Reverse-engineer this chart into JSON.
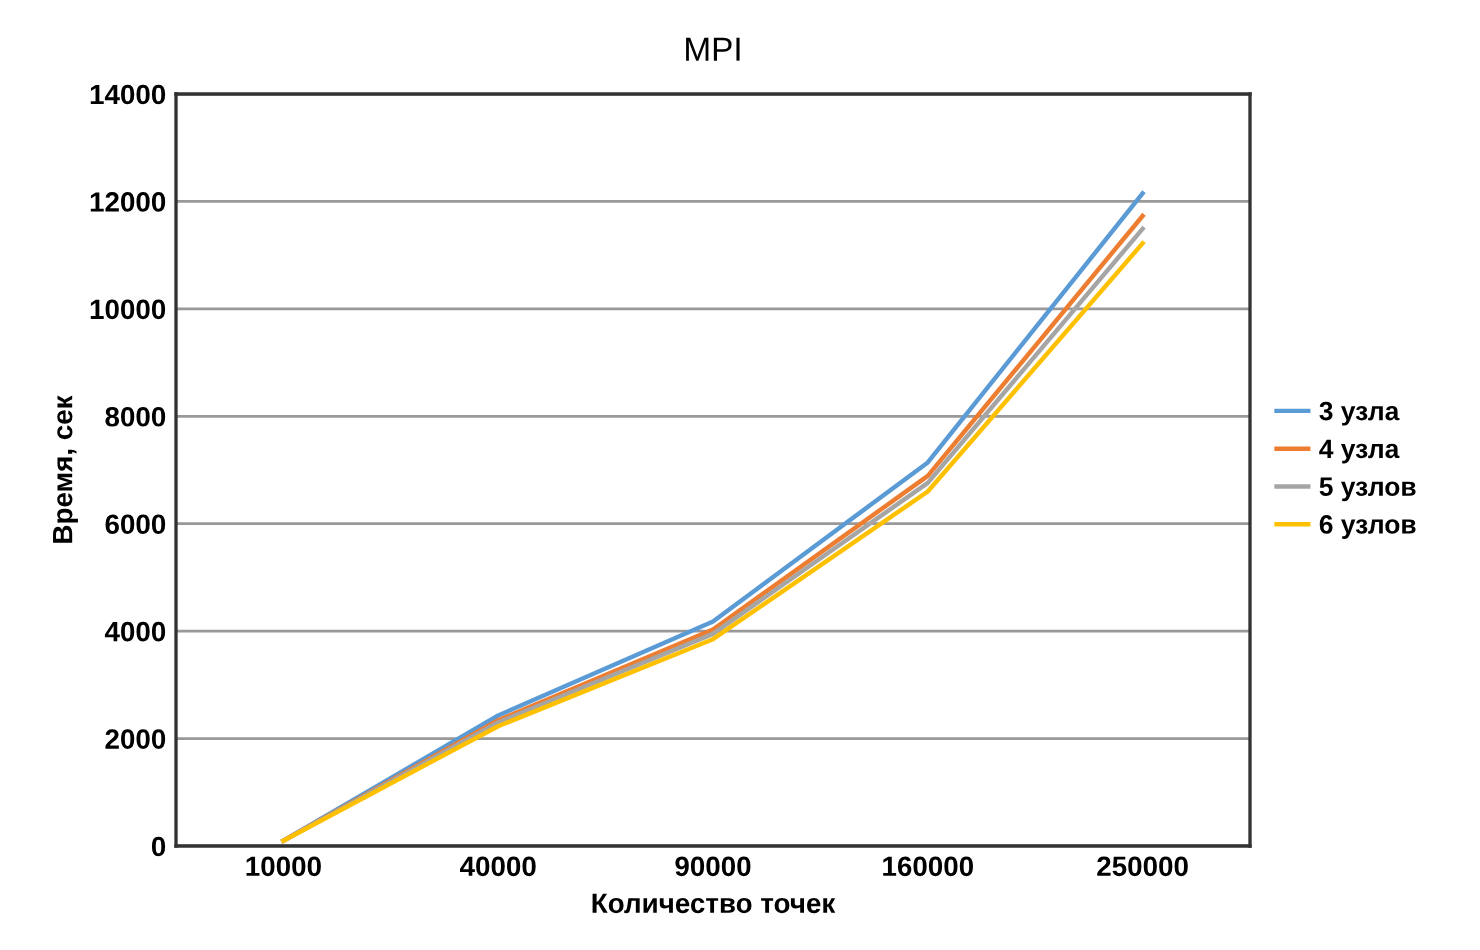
{
  "chart_data": {
    "type": "line",
    "title": "MPI",
    "xlabel": "Количество точек",
    "ylabel": "Время, сек",
    "categories": [
      "10000",
      "40000",
      "90000",
      "160000",
      "250000"
    ],
    "series": [
      {
        "name": "3 узла",
        "color": "#5b9bd5",
        "values": [
          100,
          2430,
          4180,
          7140,
          12150
        ]
      },
      {
        "name": "4 узла",
        "color": "#ed7d31",
        "values": [
          100,
          2340,
          4030,
          6890,
          11730
        ]
      },
      {
        "name": "5 узлов",
        "color": "#a5a5a5",
        "values": [
          100,
          2300,
          3950,
          6760,
          11490
        ]
      },
      {
        "name": "6 узлов",
        "color": "#ffc000",
        "values": [
          100,
          2230,
          3850,
          6600,
          11220
        ]
      }
    ],
    "ylim": [
      0,
      14000
    ],
    "yticks": [
      0,
      2000,
      4000,
      6000,
      8000,
      10000,
      12000,
      14000
    ],
    "grid": "y",
    "legend": "right",
    "marker": "none",
    "line_style": "solid"
  }
}
